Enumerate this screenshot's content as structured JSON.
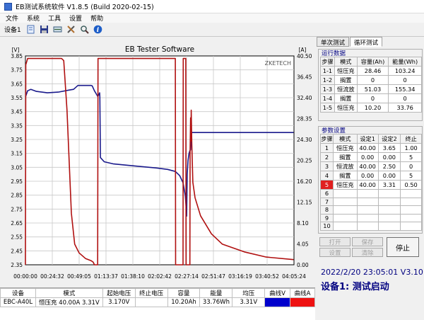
{
  "window": {
    "title": "EB测试系统软件 V1.8.5 (Build 2020-02-15)"
  },
  "menu": [
    "文件",
    "系统",
    "工具",
    "设置",
    "帮助"
  ],
  "toolbar": {
    "device_label": "设备1",
    "icons": [
      "document-icon",
      "save-icon",
      "gauge-icon",
      "tools-icon",
      "search-icon",
      "info-icon"
    ]
  },
  "chart_data": {
    "type": "line",
    "title": "EB Tester Software",
    "watermark": "ZKETECH",
    "left_unit": "[V]",
    "right_unit": "[A]",
    "left_axis": {
      "range": [
        2.35,
        3.85
      ],
      "ticks": [
        "3.85",
        "3.75",
        "3.65",
        "3.55",
        "3.45",
        "3.35",
        "3.25",
        "3.15",
        "3.05",
        "2.95",
        "2.85",
        "2.75",
        "2.65",
        "2.55",
        "2.45",
        "2.35"
      ]
    },
    "right_axis": {
      "range": [
        0.0,
        40.5
      ],
      "ticks": [
        "40.50",
        "36.45",
        "32.40",
        "28.35",
        "24.30",
        "20.25",
        "16.20",
        "12.15",
        "8.10",
        "4.05",
        "0.00"
      ]
    },
    "x_ticks": [
      "00:00:00",
      "00:24:32",
      "00:49:05",
      "01:13:37",
      "01:38:10",
      "02:02:42",
      "02:27:14",
      "02:51:47",
      "03:16:19",
      "03:40:52",
      "04:05:24"
    ],
    "x_range_minutes": [
      0,
      245.4
    ],
    "series": [
      {
        "key": "voltage",
        "axis": "left",
        "color": "#1a1a8c",
        "points": [
          [
            0,
            3.555
          ],
          [
            2,
            3.6
          ],
          [
            5,
            3.61
          ],
          [
            10,
            3.595
          ],
          [
            20,
            3.585
          ],
          [
            30,
            3.59
          ],
          [
            40,
            3.605
          ],
          [
            44,
            3.61
          ],
          [
            48,
            3.638
          ],
          [
            60,
            3.638
          ],
          [
            61,
            3.635
          ],
          [
            63,
            3.6
          ],
          [
            66,
            3.56
          ],
          [
            67,
            3.57
          ],
          [
            67.8,
            3.585
          ],
          [
            68,
            3.555
          ],
          [
            68.5,
            3.12
          ],
          [
            72,
            3.09
          ],
          [
            80,
            3.075
          ],
          [
            100,
            3.06
          ],
          [
            120,
            3.045
          ],
          [
            130,
            3.035
          ],
          [
            137,
            3.02
          ],
          [
            141,
            2.99
          ],
          [
            144,
            2.94
          ],
          [
            146,
            2.85
          ],
          [
            146.8,
            2.77
          ],
          [
            147.3,
            2.7
          ],
          [
            147.8,
            3.0
          ],
          [
            148.6,
            3.1
          ],
          [
            149.5,
            3.15
          ],
          [
            150.3,
            3.17
          ],
          [
            150.9,
            3.175
          ],
          [
            151.4,
            3.22
          ],
          [
            151.8,
            3.3
          ],
          [
            151.9,
            3.3
          ],
          [
            154,
            3.3
          ],
          [
            200,
            3.3
          ],
          [
            245,
            3.3
          ]
        ]
      },
      {
        "key": "current",
        "axis": "right",
        "color": "#b01010",
        "points": [
          [
            0,
            0
          ],
          [
            0.3,
            38.8
          ],
          [
            2,
            40
          ],
          [
            33,
            40
          ],
          [
            35,
            39.6
          ],
          [
            38,
            30
          ],
          [
            40,
            20
          ],
          [
            42,
            10
          ],
          [
            45,
            4
          ],
          [
            49,
            2.3
          ],
          [
            55,
            1.2
          ],
          [
            60,
            0.8
          ],
          [
            62,
            0.5
          ],
          [
            63,
            0
          ],
          [
            66,
            0
          ],
          [
            66.3,
            40
          ],
          [
            68,
            40
          ],
          [
            130,
            40
          ],
          [
            137,
            40
          ],
          [
            137.2,
            0
          ],
          [
            144,
            0
          ],
          [
            144.2,
            40
          ],
          [
            146.5,
            40
          ],
          [
            146.8,
            0
          ],
          [
            150.3,
            0
          ],
          [
            150.5,
            22
          ],
          [
            150.9,
            28.5
          ],
          [
            151.2,
            24
          ],
          [
            151.5,
            30
          ],
          [
            152,
            23.5
          ],
          [
            153,
            16
          ],
          [
            155,
            13
          ],
          [
            160,
            9.5
          ],
          [
            170,
            6
          ],
          [
            180,
            4
          ],
          [
            200,
            2.5
          ],
          [
            220,
            1.5
          ],
          [
            245,
            1
          ]
        ]
      }
    ]
  },
  "tabs": [
    "单次测试",
    "循环测试"
  ],
  "run_data": {
    "title": "运行数据",
    "columns": [
      "步骤",
      "模式",
      "容量(Ah)",
      "能量(Wh)"
    ],
    "rows": [
      [
        "1-1",
        "恒压充",
        "28.46",
        "103.24"
      ],
      [
        "1-2",
        "搁置",
        "0",
        "0"
      ],
      [
        "1-3",
        "恒流放",
        "51.03",
        "155.34"
      ],
      [
        "1-4",
        "搁置",
        "0",
        "0"
      ],
      [
        "1-5",
        "恒压充",
        "10.20",
        "33.76"
      ]
    ]
  },
  "params": {
    "title": "参数设置",
    "columns": [
      "步骤",
      "模式",
      "设定1",
      "设定2",
      "终止"
    ],
    "rows": [
      [
        "1",
        "恒压充",
        "40.00",
        "3.65",
        "1.00"
      ],
      [
        "2",
        "搁置",
        "0.00",
        "0.00",
        "5"
      ],
      [
        "3",
        "恒流放",
        "40.00",
        "2.50",
        "0"
      ],
      [
        "4",
        "搁置",
        "0.00",
        "0.00",
        "5"
      ],
      [
        "5",
        "恒压充",
        "40.00",
        "3.31",
        "0.50"
      ],
      [
        "6",
        "",
        "",
        "",
        ""
      ],
      [
        "7",
        "",
        "",
        "",
        ""
      ],
      [
        "8",
        "",
        "",
        "",
        ""
      ],
      [
        "9",
        "",
        "",
        "",
        ""
      ],
      [
        "10",
        "",
        "",
        "",
        ""
      ]
    ],
    "selected_row": 4
  },
  "buttons": {
    "open": "打开",
    "save": "保存",
    "settings": "设置",
    "clear": "清除",
    "stop": "停止"
  },
  "status_table": {
    "columns": [
      "设备",
      "模式",
      "起始电压",
      "终止电压",
      "容量",
      "能量",
      "均压",
      "曲线V",
      "曲线A"
    ],
    "row": [
      "EBC-A40L",
      "恒压充  40.00A  3.31V",
      "3.170V",
      "",
      "10.20Ah",
      "33.76Wh",
      "3.31V",
      "",
      ""
    ],
    "curve_v_color": "#0000cc",
    "curve_a_color": "#ee1111"
  },
  "info": {
    "time": "2022/2/20 23:05:01  V3.10",
    "status": "设备1: 测试启动"
  }
}
